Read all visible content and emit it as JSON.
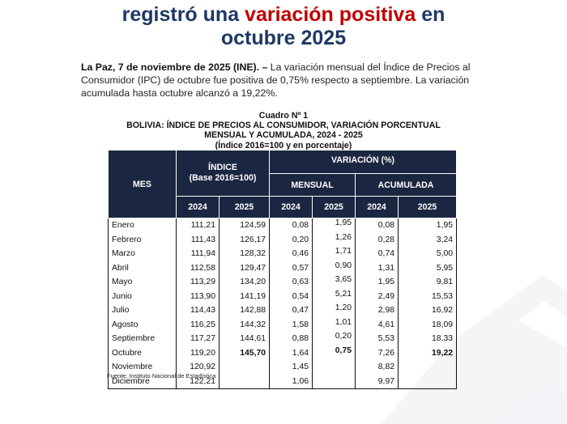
{
  "headline": {
    "part1": "registró una ",
    "highlight": "variación positiva",
    "part2": " en",
    "line2": "octubre 2025",
    "colors": {
      "main": "#1f3864",
      "highlight": "#c00000"
    }
  },
  "lead": {
    "dateline": "La Paz, 7 de noviembre de 2025 (INE). –",
    "text": " La variación mensual del Índice de Precios al Consumidor (IPC) de octubre fue positiva de 0,75% respecto a septiembre. La variación acumulada hasta octubre alcanzó a 19,22%."
  },
  "table_caption": {
    "number": "Cuadro Nº 1",
    "title_line1": "BOLIVIA: ÍNDICE DE PRECIOS AL CONSUMIDOR, VARIACIÓN PORCENTUAL",
    "title_line2": "MENSUAL Y ACUMULADA, 2024 - 2025",
    "subtitle": "(Índice 2016=100 y en porcentaje)"
  },
  "table": {
    "header": {
      "mes": "MES",
      "indice_line1": "ÍNDICE",
      "indice_line2": "(Base 2016=100)",
      "variacion": "VARIACIÓN (%)",
      "mensual": "MENSUAL",
      "acumulada": "ACUMULADA",
      "years": [
        "2024",
        "2025",
        "2024",
        "2025",
        "2024",
        "2025"
      ]
    },
    "header_color": "#1b2641",
    "rows": [
      {
        "mes": "Enero",
        "idx2024": "111,21",
        "idx2025": "124,59",
        "men2024": "0,08",
        "men2025": "1,95",
        "acu2024": "0,08",
        "acu2025": "1,95"
      },
      {
        "mes": "Febrero",
        "idx2024": "111,43",
        "idx2025": "126,17",
        "men2024": "0,20",
        "men2025": "1,26",
        "acu2024": "0,28",
        "acu2025": "3,24"
      },
      {
        "mes": "Marzo",
        "idx2024": "111,94",
        "idx2025": "128,32",
        "men2024": "0,46",
        "men2025": "1,71",
        "acu2024": "0,74",
        "acu2025": "5,00"
      },
      {
        "mes": "Abril",
        "idx2024": "112,58",
        "idx2025": "129,47",
        "men2024": "0,57",
        "men2025": "0,90",
        "acu2024": "1,31",
        "acu2025": "5,95"
      },
      {
        "mes": "Mayo",
        "idx2024": "113,29",
        "idx2025": "134,20",
        "men2024": "0,63",
        "men2025": "3,65",
        "acu2024": "1,95",
        "acu2025": "9,81"
      },
      {
        "mes": "Junio",
        "idx2024": "113,90",
        "idx2025": "141,19",
        "men2024": "0,54",
        "men2025": "5,21",
        "acu2024": "2,49",
        "acu2025": "15,53"
      },
      {
        "mes": "Julio",
        "idx2024": "114,43",
        "idx2025": "142,88",
        "men2024": "0,47",
        "men2025": "1,20",
        "acu2024": "2,98",
        "acu2025": "16,92"
      },
      {
        "mes": "Agosto",
        "idx2024": "116,25",
        "idx2025": "144,32",
        "men2024": "1,58",
        "men2025": "1,01",
        "acu2024": "4,61",
        "acu2025": "18,09"
      },
      {
        "mes": "Septiembre",
        "idx2024": "117,27",
        "idx2025": "144,61",
        "men2024": "0,88",
        "men2025": "0,20",
        "acu2024": "5,53",
        "acu2025": "18,33"
      },
      {
        "mes": "Octubre",
        "idx2024": "119,20",
        "idx2025": "145,70",
        "men2024": "1,64",
        "men2025": "0,75",
        "acu2024": "7,26",
        "acu2025": "19,22"
      },
      {
        "mes": "Noviembre",
        "idx2024": "120,92",
        "idx2025": "",
        "men2024": "1,45",
        "men2025": "",
        "acu2024": "8,82",
        "acu2025": ""
      },
      {
        "mes": "Diciembre",
        "idx2024": "122,21",
        "idx2025": "",
        "men2024": "1,06",
        "men2025": "",
        "acu2024": "9,97",
        "acu2025": ""
      }
    ]
  },
  "source": "Fuente: Instituto Nacional de Estadística"
}
